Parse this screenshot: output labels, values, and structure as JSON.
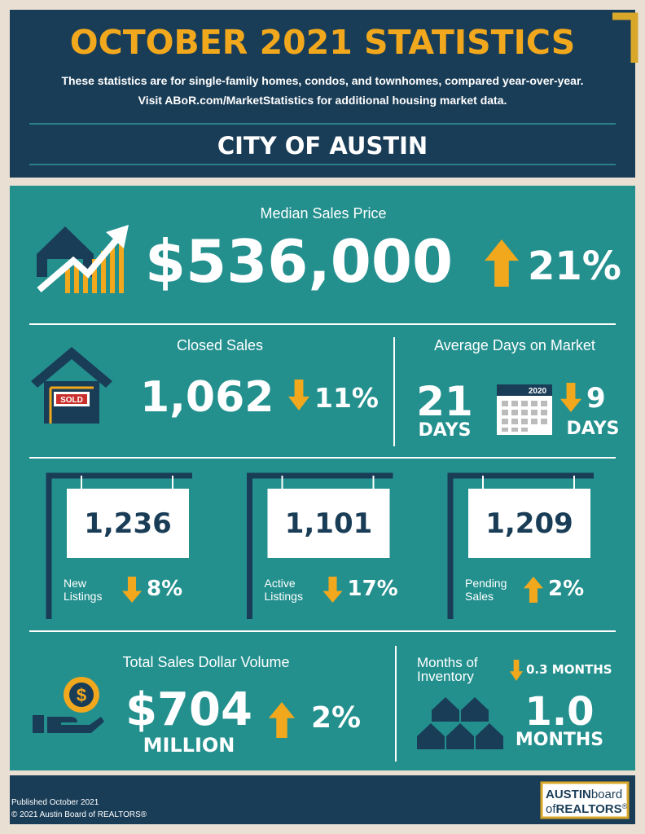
{
  "header": {
    "title": "OCTOBER 2021 STATISTICS",
    "subtitle": [
      "These statistics are for single-family homes, condos, and townhomes, compared year-over-year.",
      "Visit ABoR.com/MarketStatistics for additional housing market data."
    ],
    "region": "CITY OF AUSTIN"
  },
  "median_sales_price": {
    "label": "Median Sales Price",
    "value": "$536,000",
    "change": "21%",
    "direction": "up"
  },
  "closed_sales": {
    "label": "Closed Sales",
    "sign": "SOLD",
    "value": "1,062",
    "change": "11%",
    "direction": "down"
  },
  "days_on_market": {
    "label": "Average Days on Market",
    "value": "21",
    "unit": "DAYS",
    "calendar_year": "2020",
    "change": "9",
    "change_unit": "DAYS",
    "direction": "down"
  },
  "listings": [
    {
      "value": "1,236",
      "label": [
        "New",
        "Listings"
      ],
      "change": "8%",
      "direction": "down"
    },
    {
      "value": "1,101",
      "label": [
        "Active",
        "Listings"
      ],
      "change": "17%",
      "direction": "down"
    },
    {
      "value": "1,209",
      "label": [
        "Pending",
        "Sales"
      ],
      "change": "2%",
      "direction": "up"
    }
  ],
  "total_volume": {
    "label": "Total Sales Dollar Volume",
    "value": "$704",
    "unit": "MILLION",
    "change": "2%",
    "direction": "up"
  },
  "inventory": {
    "label": [
      "Months of",
      "Inventory"
    ],
    "change": "0.3 MONTHS",
    "value": "1.0",
    "unit": "MONTHS",
    "direction": "down"
  },
  "footer": {
    "published": "Published October 2021",
    "copyright": "© 2021 Austin Board of REALTORS®",
    "logo": [
      "AUSTIN",
      "board",
      "of",
      "REALTORS",
      "®"
    ]
  }
}
